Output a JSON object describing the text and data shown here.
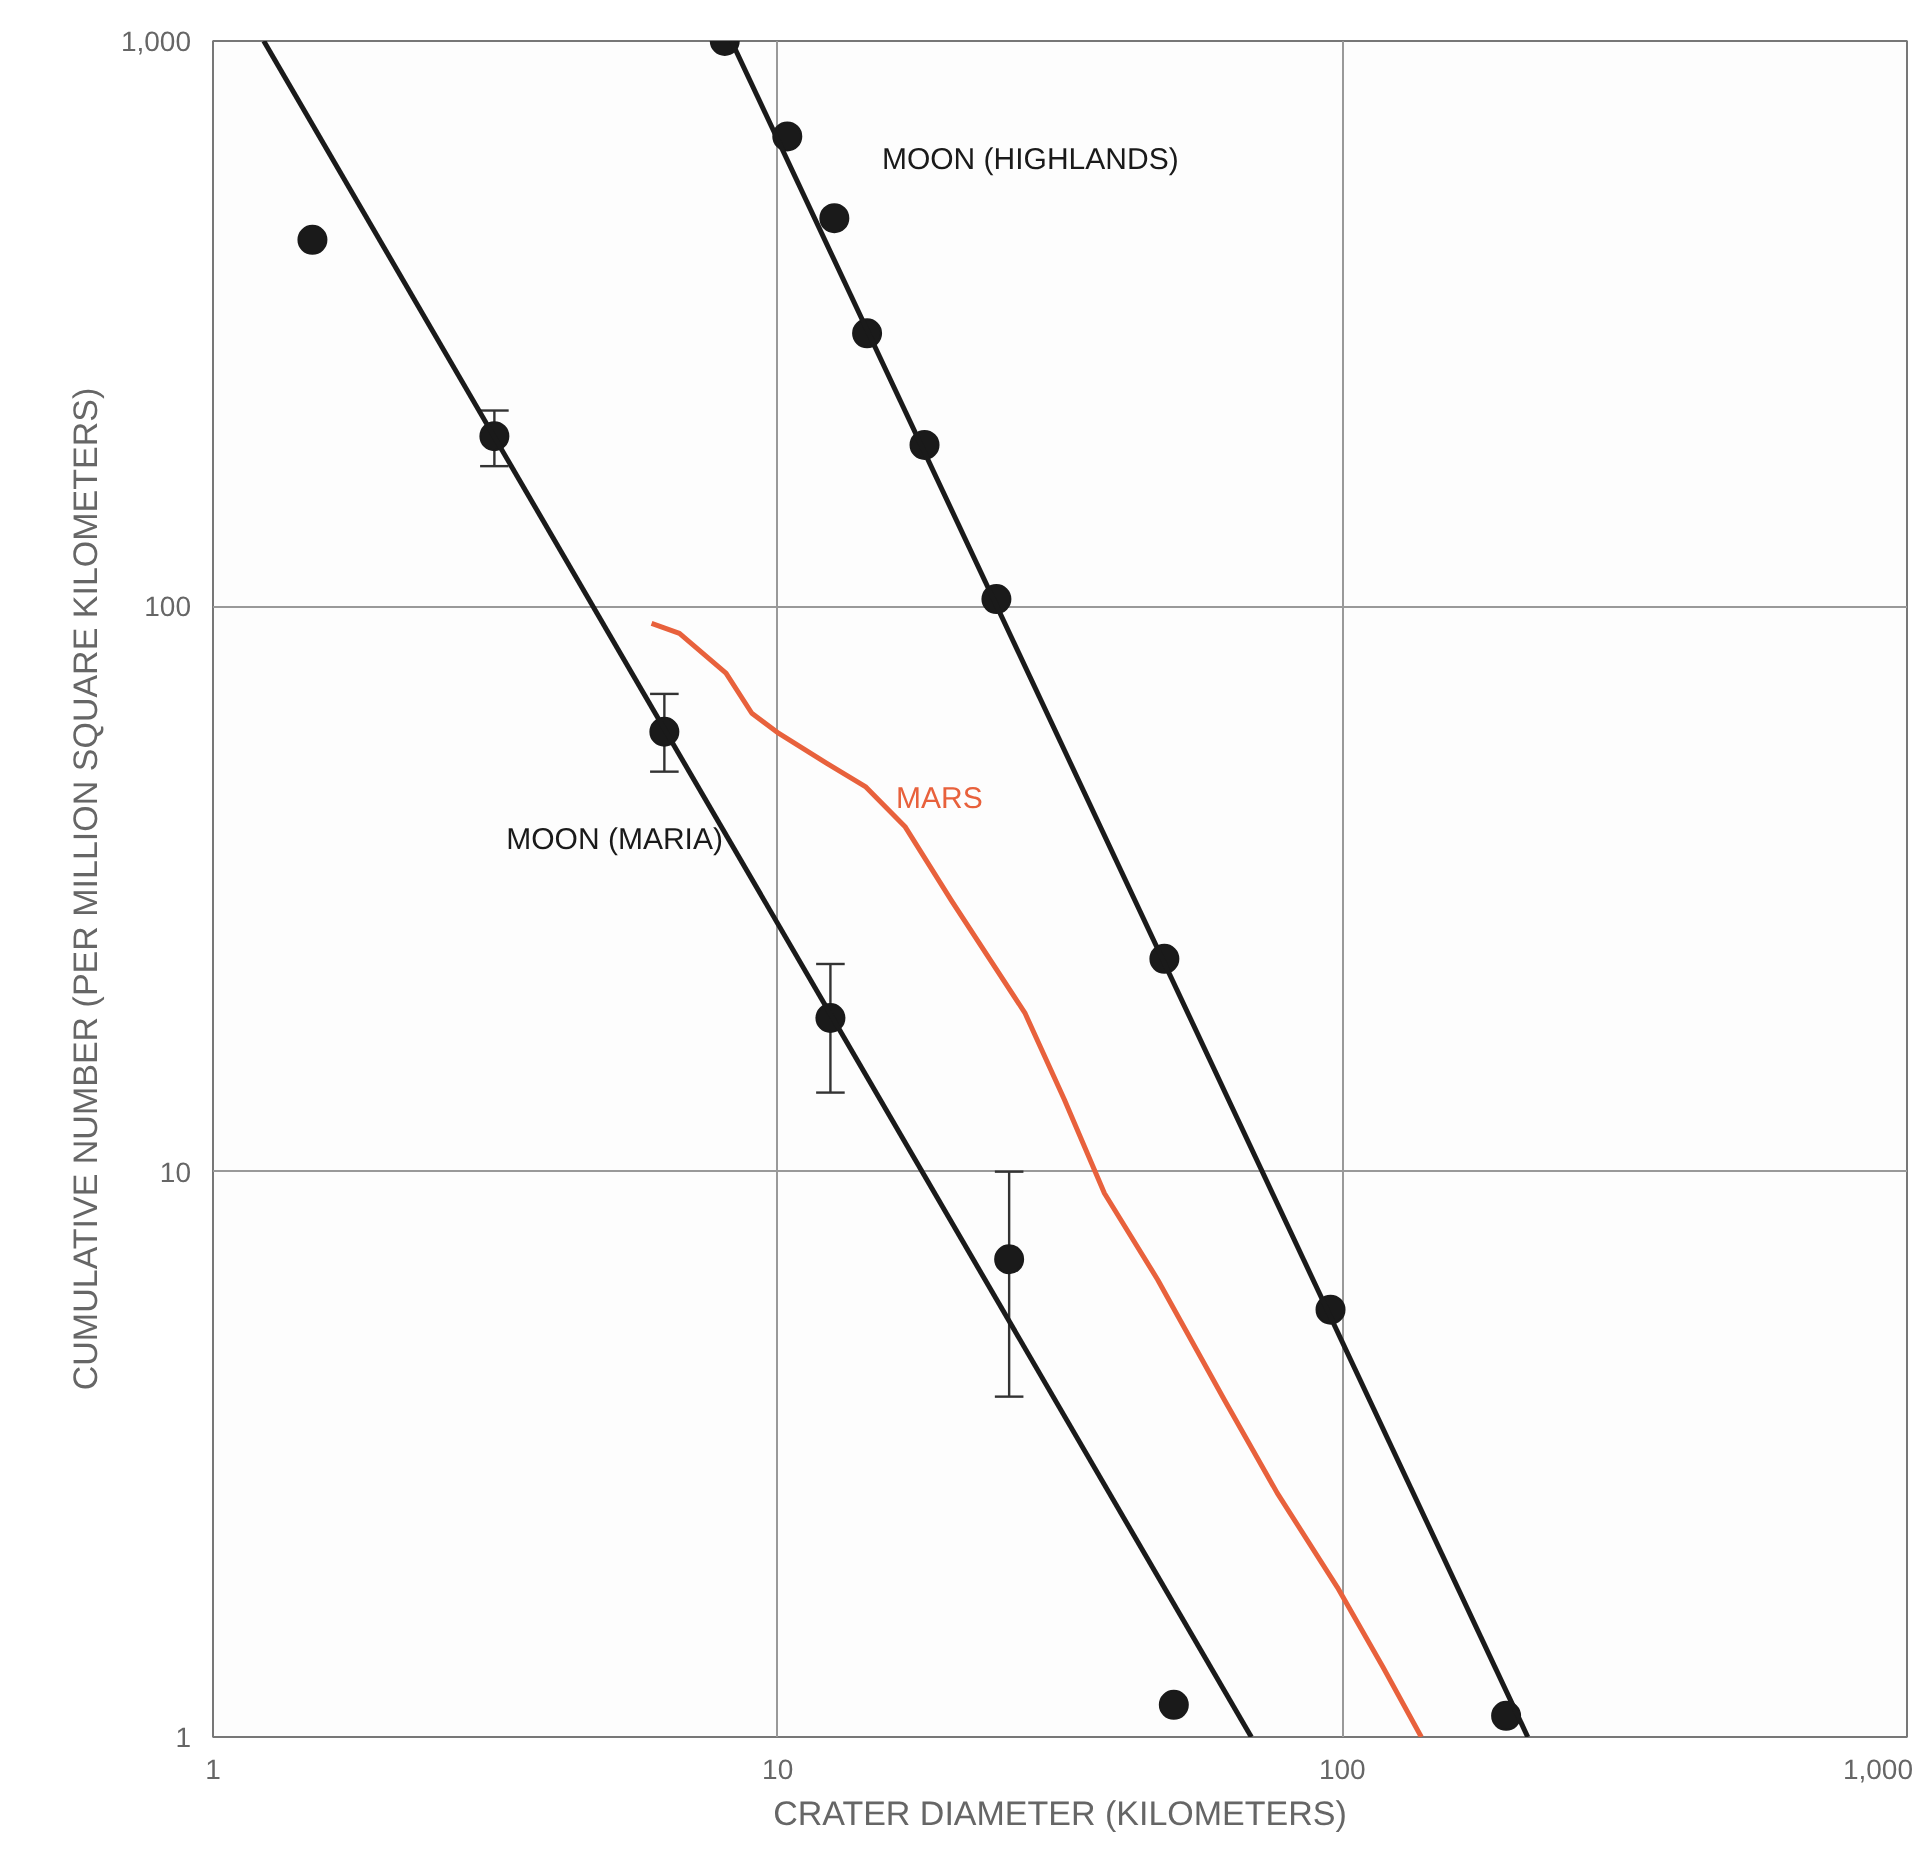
{
  "chart_data": {
    "type": "scatter",
    "xlabel": "CRATER DIAMETER (KILOMETERS)",
    "ylabel": "CUMULATIVE NUMBER (PER MILLION SQUARE KILOMETERS)",
    "log": "xy",
    "grid": true,
    "xlim": [
      1,
      1000
    ],
    "ylim": [
      1,
      1000
    ],
    "xticks": [
      1,
      10,
      100,
      {
        "value": 1000,
        "label": "1,000"
      }
    ],
    "yticks": [
      1,
      10,
      100,
      {
        "value": 1000,
        "label": "1,000"
      }
    ],
    "series": [
      {
        "color": "#1a1a1a",
        "marker": "circle",
        "x": [
          1.5,
          3.15,
          6.3,
          12.4,
          25.7,
          50.3
        ],
        "values": [
          445,
          200,
          60,
          18.7,
          7.0,
          1.14
        ],
        "errors": [
          null,
          [
            177,
            222
          ],
          [
            51,
            70
          ],
          [
            13.8,
            23.3
          ],
          [
            4.0,
            10.0
          ],
          null
        ]
      },
      {
        "type": "line",
        "name": "MOON (MARIA)",
        "color": "#1a1a1a",
        "x": [
          1.23,
          69
        ],
        "values": [
          1000,
          1
        ]
      },
      {
        "color": "#1a1a1a",
        "marker": "circle",
        "x": [
          8.06,
          10.4,
          12.6,
          14.4,
          18.2,
          24.4,
          48.4,
          95.3,
          195
        ],
        "values": [
          1000,
          678,
          486,
          304,
          193,
          103,
          23.8,
          5.7,
          1.09
        ]
      },
      {
        "type": "line",
        "name": "MOON (HIGHLANDS)",
        "color": "#1a1a1a",
        "x": [
          8.28,
          213
        ],
        "values": [
          1000,
          1
        ]
      },
      {
        "type": "line",
        "name": "MARS",
        "color": "#e8613c",
        "x": [
          5.98,
          6.7,
          8.1,
          9.0,
          10.05,
          12.2,
          14.3,
          16.8,
          20.3,
          27.4,
          32.2,
          37.9,
          47.1,
          61.8,
          76.7,
          98,
          118,
          138
        ],
        "values": [
          93.3,
          89.6,
          76.2,
          64.7,
          59.6,
          52.8,
          48.0,
          40.8,
          30.2,
          19.1,
          13.4,
          9.16,
          6.44,
          3.95,
          2.7,
          1.84,
          1.33,
          1.0
        ]
      }
    ]
  }
}
